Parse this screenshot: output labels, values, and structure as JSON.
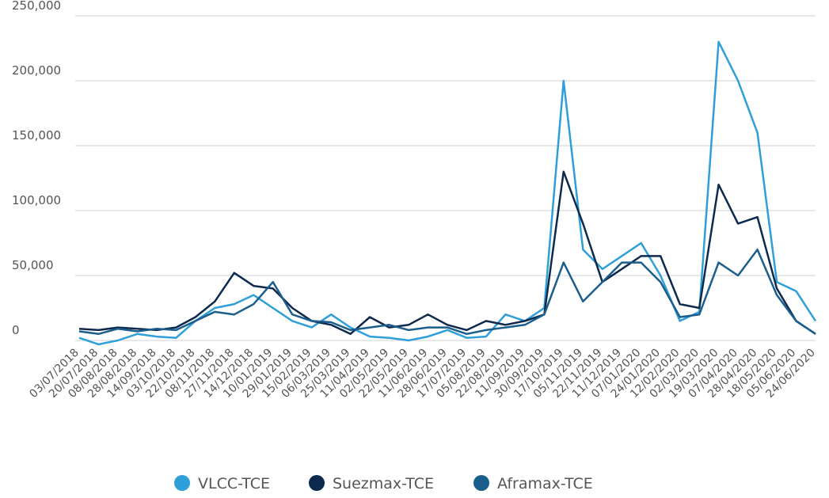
{
  "chart_data": {
    "type": "line",
    "categories": [
      "03/07/2018",
      "20/07/2018",
      "08/08/2018",
      "28/08/2018",
      "14/09/2018",
      "03/10/2018",
      "22/10/2018",
      "08/11/2018",
      "27/11/2018",
      "14/12/2018",
      "10/01/2019",
      "29/01/2019",
      "15/02/2019",
      "06/03/2019",
      "25/03/2019",
      "11/04/2019",
      "02/05/2019",
      "22/05/2019",
      "11/06/2019",
      "28/06/2019",
      "17/07/2019",
      "05/08/2019",
      "22/08/2019",
      "11/09/2019",
      "30/09/2019",
      "17/10/2019",
      "05/11/2019",
      "22/11/2019",
      "11/12/2019",
      "07/01/2020",
      "24/01/2020",
      "12/02/2020",
      "02/03/2020",
      "19/03/2020",
      "07/04/2020",
      "28/04/2020",
      "18/05/2020",
      "05/06/2020",
      "24/06/2020"
    ],
    "series": [
      {
        "name": "VLCC-TCE",
        "color": "#2e9fd8",
        "values": [
          2000,
          -3000,
          0,
          5000,
          3000,
          2000,
          15000,
          25000,
          28000,
          35000,
          25000,
          15000,
          10000,
          20000,
          10000,
          3000,
          2000,
          0,
          3000,
          8000,
          2000,
          3000,
          20000,
          15000,
          25000,
          200000,
          70000,
          55000,
          65000,
          75000,
          50000,
          15000,
          22000,
          230000,
          200000,
          160000,
          45000,
          38000,
          15000
        ]
      },
      {
        "name": "Suezmax-TCE",
        "color": "#0d2a4e",
        "values": [
          9000,
          8000,
          10000,
          9000,
          8000,
          10000,
          18000,
          30000,
          52000,
          42000,
          40000,
          25000,
          15000,
          12000,
          5000,
          18000,
          10000,
          12000,
          20000,
          12000,
          8000,
          15000,
          12000,
          15000,
          20000,
          130000,
          90000,
          45000,
          55000,
          65000,
          65000,
          28000,
          25000,
          120000,
          90000,
          95000,
          40000,
          15000,
          5000
        ]
      },
      {
        "name": "Aframax-TCE",
        "color": "#1b5e8c",
        "values": [
          7000,
          5000,
          9000,
          7000,
          9000,
          8000,
          15000,
          22000,
          20000,
          28000,
          45000,
          20000,
          15000,
          14000,
          8000,
          10000,
          12000,
          8000,
          10000,
          10000,
          5000,
          8000,
          10000,
          12000,
          20000,
          60000,
          30000,
          45000,
          60000,
          60000,
          45000,
          18000,
          20000,
          60000,
          50000,
          70000,
          35000,
          15000,
          5000
        ]
      }
    ],
    "ylim": [
      -12000,
      262000
    ],
    "yticks": [
      0,
      {
        "value": 50000,
        "label": "50,000"
      },
      {
        "value": 100000,
        "label": "100,000"
      },
      {
        "value": 150000,
        "label": "150,000"
      },
      {
        "value": 200000,
        "label": "200,000"
      },
      {
        "value": 250000,
        "label": "250,000"
      }
    ],
    "grid": true
  }
}
